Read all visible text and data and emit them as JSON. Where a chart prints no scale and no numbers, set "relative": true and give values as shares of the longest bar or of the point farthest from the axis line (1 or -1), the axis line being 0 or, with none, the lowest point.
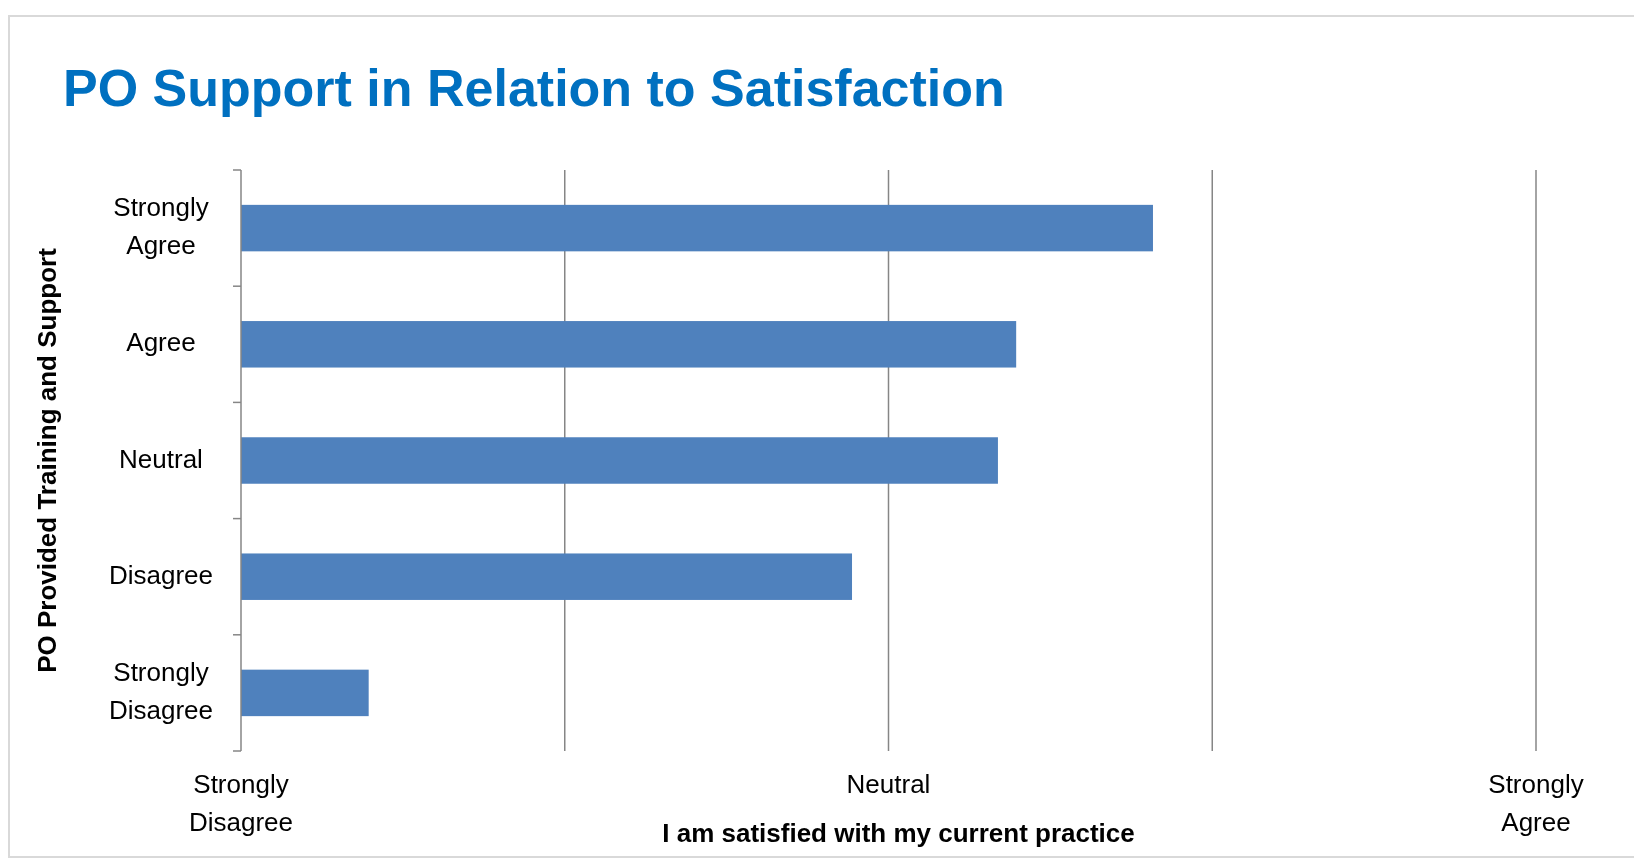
{
  "chart_data": {
    "type": "bar",
    "orientation": "horizontal",
    "relative": true,
    "title": "PO Support in Relation to Satisfaction",
    "xlabel": "I am satisfied with my current practice",
    "ylabel": "PO Provided Training and Support",
    "categories": [
      "Strongly Agree",
      "Agree",
      "Neutral",
      "Disagree",
      "Strongly Disagree"
    ],
    "values": [
      1,
      0.85,
      0.83,
      0.67,
      0.14
    ],
    "color": "#4f81bd",
    "annotations": [
      "Strongly Disagree",
      "Neutral",
      "Strongly Agree"
    ],
    "ref_lines": [
      {
        "axis": "x",
        "value": 0.355,
        "color": "#868686"
      },
      {
        "axis": "x",
        "value": 0.71,
        "color": "#868686"
      },
      {
        "axis": "x",
        "value": 1.065,
        "color": "#868686"
      },
      {
        "axis": "x",
        "value": 1.42,
        "color": "#868686"
      }
    ]
  }
}
